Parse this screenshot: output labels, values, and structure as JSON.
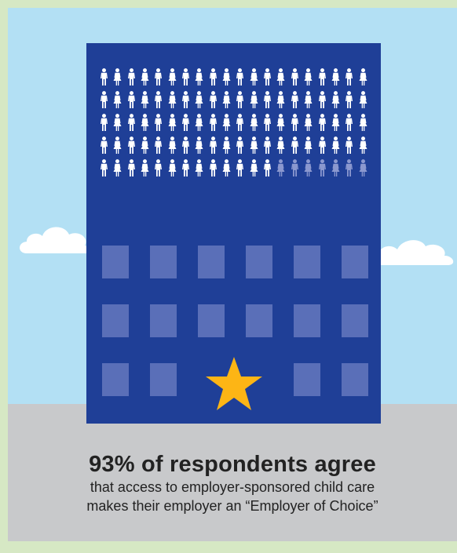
{
  "headline": "93% of respondents agree",
  "subtext_line1": "that access to employer-sponsored child care",
  "subtext_line2": "makes their employer an “Employer of Choice”",
  "icon_grid": {
    "total": 100,
    "highlighted": 93,
    "icon": "person-icon",
    "highlight_color": "#ffffff",
    "dim_color": "#8b98cf"
  },
  "colors": {
    "border": "#d6e8c4",
    "sky": "#b3e0f4",
    "ground": "#c8c9cb",
    "building": "#1f3f97",
    "window": "#5a6fb8",
    "star": "#fdb515"
  },
  "decorations": [
    "cloud-icon",
    "building",
    "star-icon"
  ]
}
